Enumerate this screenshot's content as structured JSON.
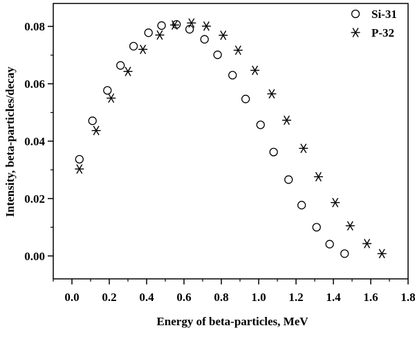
{
  "chart_data": {
    "type": "scatter",
    "xlabel": "Energy of beta-particles, MeV",
    "ylabel": "Intensity, beta-particles/decay",
    "xlim": [
      -0.1,
      1.8
    ],
    "ylim": [
      -0.008,
      0.088
    ],
    "x_ticks": [
      "0.0",
      "0.2",
      "0.4",
      "0.6",
      "0.8",
      "1.0",
      "1.2",
      "1.4",
      "1.6",
      "1.8"
    ],
    "y_ticks": [
      "0.00",
      "0.02",
      "0.04",
      "0.06",
      "0.08"
    ],
    "legend_position": "top-right",
    "grid": false,
    "series": [
      {
        "name": "Si-31",
        "marker": "open-circle",
        "x": [
          0.04,
          0.11,
          0.19,
          0.26,
          0.33,
          0.41,
          0.48,
          0.56,
          0.63,
          0.71,
          0.78,
          0.86,
          0.93,
          1.01,
          1.08,
          1.16,
          1.23,
          1.31,
          1.38,
          1.46
        ],
        "y": [
          0.0337,
          0.0471,
          0.0577,
          0.0664,
          0.0731,
          0.0778,
          0.0803,
          0.0807,
          0.079,
          0.0755,
          0.0701,
          0.063,
          0.0547,
          0.0457,
          0.0362,
          0.0266,
          0.0177,
          0.01,
          0.0041,
          0.0008
        ]
      },
      {
        "name": "P-32",
        "marker": "asterisk",
        "x": [
          0.04,
          0.13,
          0.21,
          0.3,
          0.38,
          0.47,
          0.55,
          0.64,
          0.72,
          0.81,
          0.89,
          0.98,
          1.07,
          1.15,
          1.24,
          1.32,
          1.41,
          1.49,
          1.58,
          1.66
        ],
        "y": [
          0.0303,
          0.0437,
          0.055,
          0.0643,
          0.072,
          0.077,
          0.0805,
          0.0812,
          0.0801,
          0.0769,
          0.0717,
          0.0647,
          0.0565,
          0.0473,
          0.0375,
          0.0276,
          0.0186,
          0.0105,
          0.0043,
          0.0008
        ]
      }
    ]
  }
}
